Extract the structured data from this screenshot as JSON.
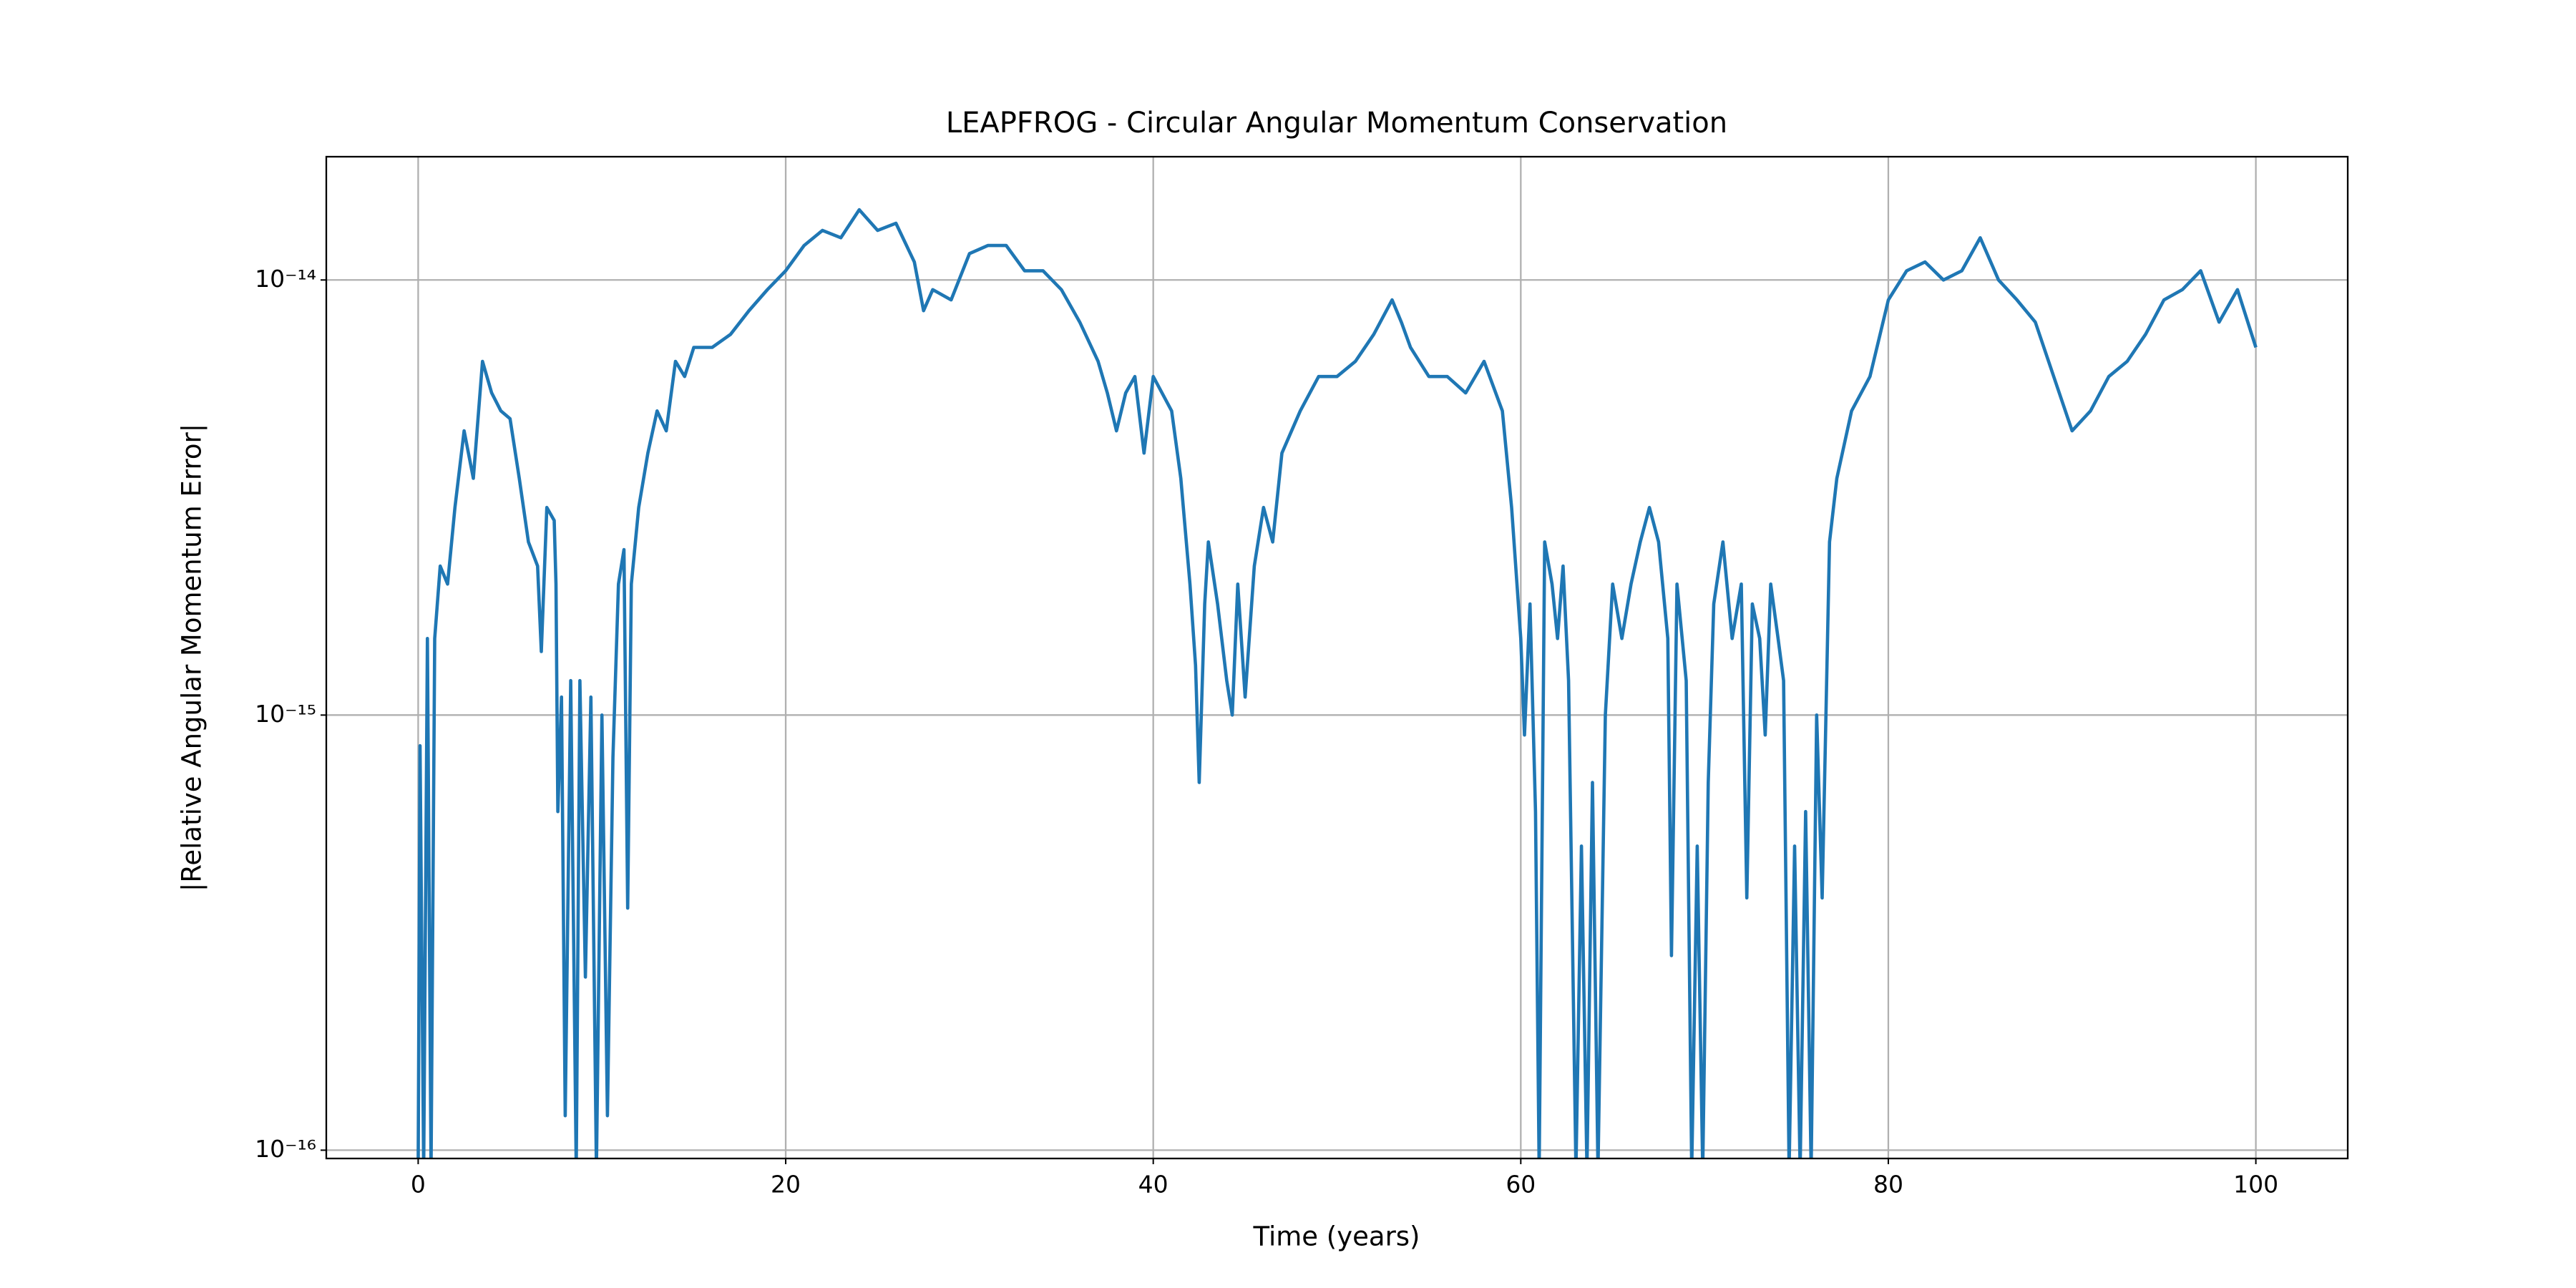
{
  "chart_data": {
    "type": "line",
    "title": "LEAPFROG - Circular Angular Momentum Conservation",
    "xlabel": "Time (years)",
    "ylabel": "|Relative Angular Momentum Error|",
    "color": "#1f77b4",
    "log_y": true,
    "grid": true,
    "xlim": [
      -5,
      105
    ],
    "ylim": [
      9.57e-17,
      1.92e-14
    ],
    "xticks": [
      0,
      20,
      40,
      60,
      80,
      100
    ],
    "yticks": [
      {
        "value": 1e-16,
        "label": "10⁻¹⁶"
      },
      {
        "value": 1e-15,
        "label": "10⁻¹⁵"
      },
      {
        "value": 1e-14,
        "label": "10⁻¹⁴"
      }
    ],
    "x": [
      0,
      0.1,
      0.3,
      0.5,
      0.7,
      0.9,
      1.2,
      1.6,
      2,
      2.5,
      3,
      3.5,
      4,
      4.5,
      5,
      5.5,
      6,
      6.5,
      6.7,
      7,
      7.4,
      7.5,
      7.6,
      7.8,
      8,
      8.3,
      8.6,
      8.8,
      9.1,
      9.4,
      9.7,
      10,
      10.3,
      10.6,
      10.9,
      11.2,
      11.4,
      11.6,
      12,
      12.5,
      13,
      13.5,
      14,
      14.5,
      15,
      16,
      17,
      18,
      19,
      20,
      21,
      22,
      23,
      24,
      25,
      26,
      27,
      27.5,
      28,
      29,
      30,
      31,
      32,
      33,
      34,
      35,
      36,
      37,
      37.5,
      38,
      38.5,
      39,
      39.5,
      40,
      41,
      41.5,
      42,
      42.3,
      42.5,
      42.8,
      43,
      43.5,
      44,
      44.3,
      44.6,
      45,
      45.5,
      46,
      46.5,
      47,
      48,
      49,
      50,
      51,
      52,
      53,
      53.5,
      54,
      55,
      56,
      57,
      58,
      59,
      59.5,
      60,
      60.2,
      60.5,
      60.8,
      61,
      61.3,
      61.7,
      62,
      62.3,
      62.6,
      63,
      63.3,
      63.6,
      63.9,
      64.2,
      64.6,
      65,
      65.5,
      66,
      66.5,
      67,
      67.5,
      68,
      68.2,
      68.5,
      69,
      69.3,
      69.6,
      69.9,
      70.2,
      70.5,
      71,
      71.5,
      72,
      72.3,
      72.6,
      73,
      73.3,
      73.6,
      74,
      74.3,
      74.6,
      74.9,
      75.2,
      75.5,
      75.8,
      76.1,
      76.4,
      76.8,
      77.2,
      78,
      79,
      80,
      81,
      82,
      83,
      84,
      85,
      86,
      87,
      88,
      89,
      90,
      91,
      92,
      93,
      94,
      95,
      96,
      97,
      98,
      99,
      100
    ],
    "values": [
      9e-17,
      8.5e-16,
      9e-17,
      1.5e-15,
      9e-17,
      1.5e-15,
      2.2e-15,
      2e-15,
      3e-15,
      4.5e-15,
      3.5e-15,
      6.5e-15,
      5.5e-15,
      5e-15,
      4.8e-15,
      3.5e-15,
      2.5e-15,
      2.2e-15,
      1.4e-15,
      3e-15,
      2.8e-15,
      2e-15,
      6e-16,
      1.1e-15,
      1.2e-16,
      1.2e-15,
      9e-17,
      1.2e-15,
      2.5e-16,
      1.1e-15,
      9e-17,
      1e-15,
      1.2e-16,
      8e-16,
      2e-15,
      2.4e-15,
      3.6e-16,
      2e-15,
      3e-15,
      4e-15,
      5e-15,
      4.5e-15,
      6.5e-15,
      6e-15,
      7e-15,
      7e-15,
      7.5e-15,
      8.5e-15,
      9.5e-15,
      1.05e-14,
      1.2e-14,
      1.3e-14,
      1.25e-14,
      1.45e-14,
      1.3e-14,
      1.35e-14,
      1.1e-14,
      8.5e-15,
      9.5e-15,
      9e-15,
      1.15e-14,
      1.2e-14,
      1.2e-14,
      1.05e-14,
      1.05e-14,
      9.5e-15,
      8e-15,
      6.5e-15,
      5.5e-15,
      4.5e-15,
      5.5e-15,
      6e-15,
      4e-15,
      6e-15,
      5e-15,
      3.5e-15,
      2e-15,
      1.3e-15,
      7e-16,
      1.8e-15,
      2.5e-15,
      1.8e-15,
      1.2e-15,
      1e-15,
      2e-15,
      1.1e-15,
      2.2e-15,
      3e-15,
      2.5e-15,
      4e-15,
      5e-15,
      6e-15,
      6e-15,
      6.5e-15,
      7.5e-15,
      9e-15,
      8e-15,
      7e-15,
      6e-15,
      6e-15,
      5.5e-15,
      6.5e-15,
      5e-15,
      3e-15,
      1.5e-15,
      9e-16,
      1.8e-15,
      6e-16,
      9e-17,
      2.5e-15,
      2e-15,
      1.5e-15,
      2.2e-15,
      1.2e-15,
      9e-17,
      5e-16,
      9e-17,
      7e-16,
      9e-17,
      1e-15,
      2e-15,
      1.5e-15,
      2e-15,
      2.5e-15,
      3e-15,
      2.5e-15,
      1.5e-15,
      2.8e-16,
      2e-15,
      1.2e-15,
      9e-17,
      5e-16,
      9e-17,
      7e-16,
      1.8e-15,
      2.5e-15,
      1.5e-15,
      2e-15,
      3.8e-16,
      1.8e-15,
      1.5e-15,
      9e-16,
      2e-15,
      1.5e-15,
      1.2e-15,
      9e-17,
      5e-16,
      9e-17,
      6e-16,
      9e-17,
      1e-15,
      3.8e-16,
      2.5e-15,
      3.5e-15,
      5e-15,
      6e-15,
      9e-15,
      1.05e-14,
      1.1e-14,
      1e-14,
      1.05e-14,
      1.25e-14,
      1e-14,
      9e-15,
      8e-15,
      6e-15,
      4.5e-15,
      5e-15,
      6e-15,
      6.5e-15,
      7.5e-15,
      9e-15,
      9.5e-15,
      1.05e-14,
      8e-15,
      9.5e-15,
      7e-15
    ]
  }
}
